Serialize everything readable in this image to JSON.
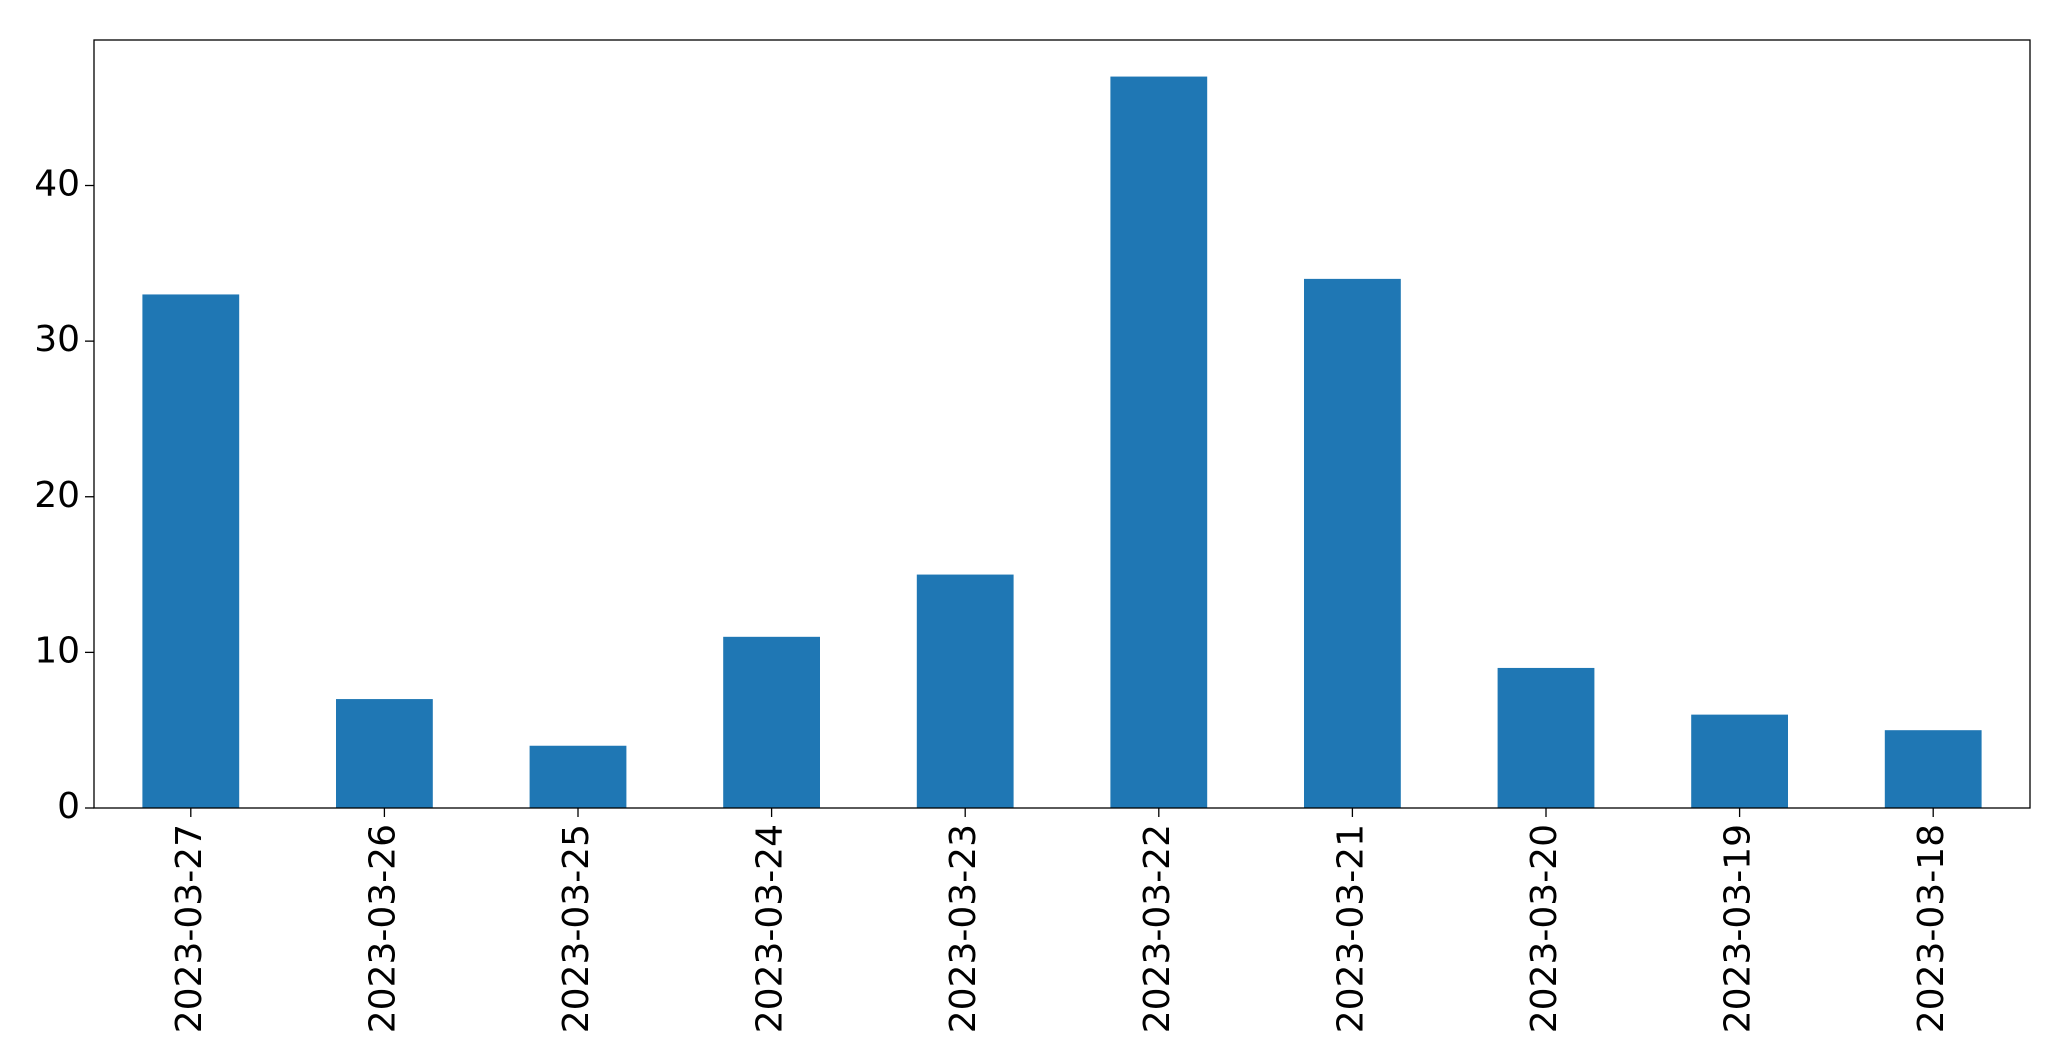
{
  "chart_data": {
    "type": "bar",
    "categories": [
      "2023-03-27",
      "2023-03-26",
      "2023-03-25",
      "2023-03-24",
      "2023-03-23",
      "2023-03-22",
      "2023-03-21",
      "2023-03-20",
      "2023-03-19",
      "2023-03-18"
    ],
    "values": [
      33,
      7,
      4,
      11,
      15,
      47,
      34,
      9,
      6,
      5
    ],
    "color": "#1f77b4",
    "ylim": [
      0,
      49.35
    ],
    "yticks": [
      0,
      10,
      20,
      30,
      40
    ],
    "grid": false
  }
}
